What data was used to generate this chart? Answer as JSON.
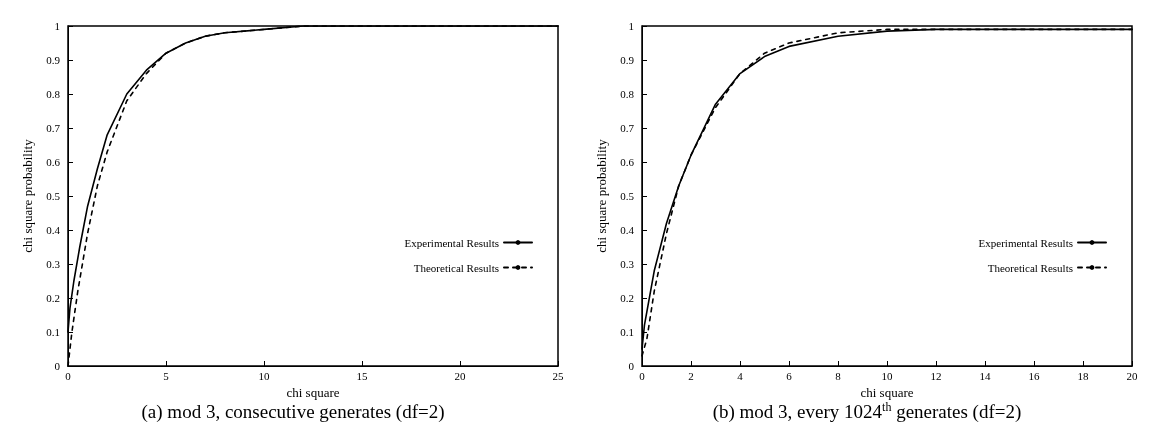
{
  "chart_data": [
    {
      "type": "line",
      "title": "(a) mod 3, consecutive generates (df=2)",
      "xlabel": "chi square",
      "ylabel": "chi square probability",
      "xlim": [
        0,
        25
      ],
      "xticks": [
        0,
        5,
        10,
        15,
        20,
        25
      ],
      "ylim": [
        0,
        1
      ],
      "yticks": [
        0,
        0.1,
        0.2,
        0.3,
        0.4,
        0.5,
        0.6,
        0.7,
        0.8,
        0.9,
        1
      ],
      "grid": false,
      "legend": "bottom right",
      "marker": "none",
      "series": [
        {
          "name": "Experimental Results",
          "color": "#000000",
          "line_style": "solid",
          "x": [
            0,
            0.1,
            0.3,
            0.6,
            1,
            1.5,
            2,
            3,
            4,
            5,
            6,
            7,
            8,
            10,
            12,
            25
          ],
          "values": [
            0.1,
            0.17,
            0.25,
            0.35,
            0.47,
            0.58,
            0.68,
            0.8,
            0.87,
            0.92,
            0.95,
            0.97,
            0.98,
            0.99,
            1,
            1
          ]
        },
        {
          "name": "Theoretical Results",
          "color": "#000000",
          "line_style": "dashed",
          "x": [
            0,
            0.2,
            0.5,
            1,
            1.5,
            2,
            3,
            4,
            5,
            6,
            7,
            8,
            10,
            12,
            25
          ],
          "values": [
            0,
            0.1,
            0.22,
            0.39,
            0.53,
            0.63,
            0.78,
            0.86,
            0.92,
            0.95,
            0.97,
            0.98,
            0.99,
            1,
            1
          ]
        }
      ]
    },
    {
      "type": "line",
      "title": "(b) mod 3, every 1024$^{th}$ generates (df=2)",
      "xlabel": "chi square",
      "ylabel": "chi square probability",
      "xlim": [
        0,
        20
      ],
      "xticks": [
        0,
        2,
        4,
        6,
        8,
        10,
        12,
        14,
        16,
        18,
        20
      ],
      "ylim": [
        0,
        1
      ],
      "yticks": [
        0,
        0.1,
        0.2,
        0.3,
        0.4,
        0.5,
        0.6,
        0.7,
        0.8,
        0.9,
        1
      ],
      "grid": false,
      "legend": "bottom right",
      "marker": "none",
      "series": [
        {
          "name": "Experimental Results",
          "color": "#000000",
          "line_style": "solid",
          "x": [
            0,
            0.1,
            0.5,
            1,
            1.5,
            2,
            3,
            4,
            5,
            6,
            8,
            10,
            12,
            20
          ],
          "values": [
            0.05,
            0.12,
            0.28,
            0.42,
            0.53,
            0.62,
            0.77,
            0.86,
            0.91,
            0.94,
            0.97,
            0.985,
            0.99,
            0.99
          ]
        },
        {
          "name": "Theoretical Results",
          "color": "#000000",
          "line_style": "dashed",
          "x": [
            0,
            0.2,
            0.5,
            1,
            1.5,
            2,
            3,
            4,
            5,
            6,
            8,
            10,
            12,
            20
          ],
          "values": [
            0.03,
            0.08,
            0.22,
            0.39,
            0.53,
            0.62,
            0.76,
            0.86,
            0.92,
            0.95,
            0.98,
            0.99,
            0.99,
            0.99
          ]
        }
      ]
    }
  ]
}
